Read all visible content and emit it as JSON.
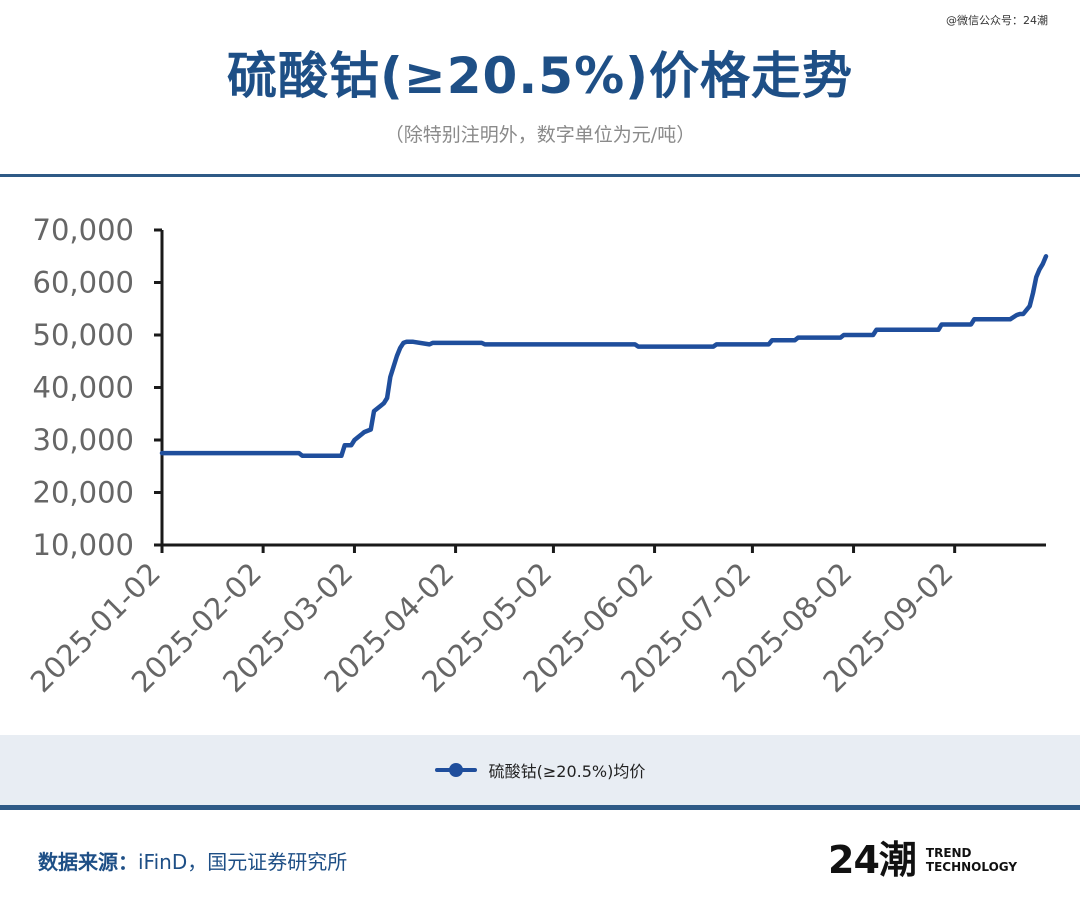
{
  "watermark": "@微信公众号：24潮",
  "title": "硫酸钴(≥20.5%)价格走势",
  "subtitle": "（除特别注明外，数字单位为元/吨）",
  "source": {
    "label": "数据来源：",
    "value": "iFinD，国元证券研究所"
  },
  "logo": {
    "mark": "24潮",
    "line1": "TREND",
    "line2": "TECHNOLOGY"
  },
  "colors": {
    "brand": "#1e4f86",
    "series": "#1f4e9c",
    "rule": "#2e5a86",
    "legend_band": "#e8edf3",
    "axis_text": "#666666"
  },
  "chart_data": {
    "type": "line",
    "title": "硫酸钴(≥20.5%)价格走势",
    "subtitle": "（除特别注明外，数字单位为元/吨）",
    "xlabel": "",
    "ylabel": "",
    "ylim": [
      10000,
      70000
    ],
    "xlim": [
      "2025-01-02",
      "2025-09-30"
    ],
    "yticks": [
      10000,
      20000,
      30000,
      40000,
      50000,
      60000,
      70000
    ],
    "ytick_labels": [
      "10,000",
      "20,000",
      "30,000",
      "40,000",
      "50,000",
      "60,000",
      "70,000"
    ],
    "xticks": [
      "2025-01-02",
      "2025-02-02",
      "2025-03-02",
      "2025-04-02",
      "2025-05-02",
      "2025-06-02",
      "2025-07-02",
      "2025-08-02",
      "2025-09-02"
    ],
    "grid": false,
    "legend_position": "bottom",
    "series": [
      {
        "name": "硫酸钴(≥20.5%)均价",
        "x": [
          "2025-01-02",
          "2025-02-13",
          "2025-02-14",
          "2025-02-26",
          "2025-02-27",
          "2025-03-01",
          "2025-03-02",
          "2025-03-04",
          "2025-03-05",
          "2025-03-07",
          "2025-03-08",
          "2025-03-10",
          "2025-03-11",
          "2025-03-12",
          "2025-03-13",
          "2025-03-14",
          "2025-03-15",
          "2025-03-16",
          "2025-03-17",
          "2025-03-18",
          "2025-03-20",
          "2025-03-25",
          "2025-03-26",
          "2025-04-10",
          "2025-04-11",
          "2025-05-27",
          "2025-05-28",
          "2025-06-20",
          "2025-06-21",
          "2025-07-07",
          "2025-07-08",
          "2025-07-15",
          "2025-07-16",
          "2025-07-29",
          "2025-07-30",
          "2025-08-08",
          "2025-08-09",
          "2025-08-28",
          "2025-08-29",
          "2025-09-07",
          "2025-09-08",
          "2025-09-19",
          "2025-09-21",
          "2025-09-22",
          "2025-09-23",
          "2025-09-25",
          "2025-09-26",
          "2025-09-27",
          "2025-09-28",
          "2025-09-29",
          "2025-09-30"
        ],
        "values": [
          27500,
          27500,
          27000,
          27000,
          29000,
          29000,
          30000,
          31000,
          31500,
          32000,
          35500,
          36500,
          37000,
          38000,
          42000,
          44000,
          46000,
          47500,
          48500,
          48700,
          48700,
          48200,
          48500,
          48500,
          48200,
          48200,
          47800,
          47800,
          48200,
          48200,
          49000,
          49000,
          49500,
          49500,
          50000,
          50000,
          51000,
          51000,
          52000,
          52000,
          53000,
          53000,
          53800,
          54000,
          54000,
          55500,
          58000,
          61000,
          62500,
          63500,
          65000
        ]
      }
    ]
  }
}
